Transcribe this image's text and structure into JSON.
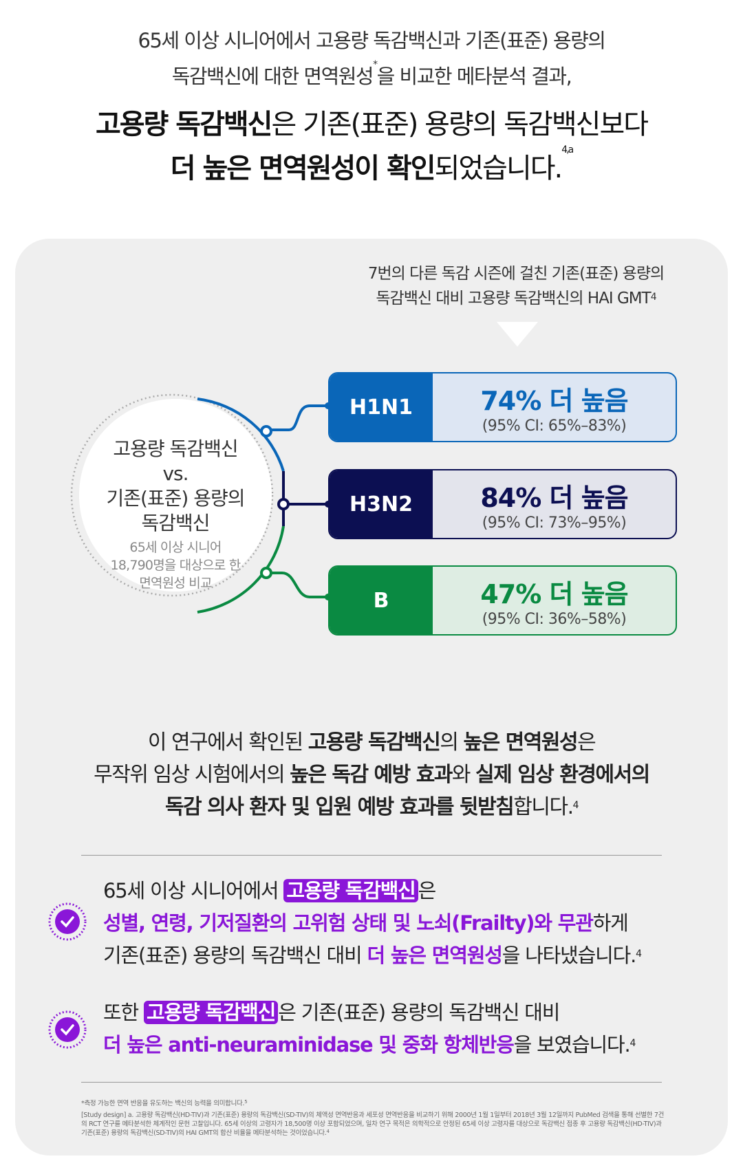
{
  "header": {
    "line1": "65세 이상 시니어에서 고용량 독감백신과 기존(표준) 용량의",
    "line2a": "독감백신에 대한 면역원성",
    "line2sup": "*",
    "line2b": "을 비교한 메타분석 결과,",
    "line3a": "고용량 독감백신",
    "line3b": "은 기존(표준) 용량의 독감백신보다",
    "line4a": "더 높은 면역원성이 확인",
    "line4b": "되었습니다.",
    "line4sup": "4,a"
  },
  "card": {
    "subtitle1": "7번의 다른 독감 시즌에 걸친 기존(표준) 용량의",
    "subtitle2": "독감백신 대비 고용량 독감백신의 HAI GMT",
    "subtitle_sup": "4",
    "circle": {
      "line1": "고용량 독감백신",
      "line2": "vs.",
      "line3": "기존(표준) 용량의",
      "line4": "독감백신",
      "note1": "65세 이상 시니어",
      "note2": "18,790명을 대상으로 한",
      "note3": "면역원성 비교"
    },
    "rows": [
      {
        "label": "H1N1",
        "value": "74% 더 높음",
        "ci": "(95% CI: 65%–83%)",
        "color": "#0a66b8",
        "bg": "#dde6f3"
      },
      {
        "label": "H3N2",
        "value": "84% 더 높음",
        "ci": "(95% CI: 73%–95%)",
        "color": "#0c0f52",
        "bg": "#e3e4ec"
      },
      {
        "label": "B",
        "value": "47% 더 높음",
        "ci": "(95% CI: 36%–58%)",
        "color": "#0a8a42",
        "bg": "#deede3"
      }
    ]
  },
  "middle": {
    "l1a": "이 연구에서 확인된 ",
    "l1b": "고용량 독감백신",
    "l1c": "의 ",
    "l1d": "높은 면역원성",
    "l1e": "은",
    "l2a": "무작위 임상 시험에서의 ",
    "l2b": "높은 독감 예방 효과",
    "l2c": "와 ",
    "l2d": "실제 임상 환경에서의",
    "l3a": "독감 의사 환자 및 입원 예방 효과를 뒷받침",
    "l3b": "합니다.",
    "l3sup": "4"
  },
  "items": [
    {
      "a": "65세 이상 시니어에서 ",
      "tag": "고용량 독감백신",
      "b": "은",
      "c": "성별, 연령, 기저질환의 고위험 상태 및 노쇠(Frailty)와 무관",
      "d": "하게",
      "e": "기존(표준) 용량의 독감백신 대비 ",
      "f": "더 높은 면역원성",
      "g": "을 나타냈습니다.",
      "sup": "4"
    },
    {
      "a": "또한 ",
      "tag": "고용량 독감백신",
      "b": "은 기존(표준) 용량의 독감백신 대비",
      "c": "더 높은 anti-neuraminidase 및 중화 항체반응",
      "d": "을 보였습니다.",
      "sup": "4"
    }
  ],
  "footnote": {
    "f1": "*측정 가능한 면역 반응을 유도하는 백신의 능력을 의미합니다.",
    "f1sup": "5",
    "f2": "[Study design] a. 고용량 독감백신(HD-TIV)과 기존(표준) 용량의 독감백신(SD-TIV)의 체액성 면역반응과 세포성 면역반응을 비교하기 위해 2000년 1월 1일부터 2018년 3월 12일까지 PubMed 검색을 통해 선별한 7건의 RCT 연구를 메타분석한 체계적인 문헌 고찰입니다. 65세 이상의 고령자가 18,500명 이상 포함되었으며, 일차 연구 목적은 의학적으로 안정된 65세 이상 고령자를 대상으로 독감백신 접종 후 고용량 독감백신(HD-TIV)과 기존(표준) 용량의 독감백신(SD-TIV)의 HAI GMT의 합산 비율을 메타분석하는 것이었습니다.",
    "f2sup": "4"
  },
  "colors": {
    "purple": "#8a16d8",
    "card_bg": "#efefef"
  }
}
